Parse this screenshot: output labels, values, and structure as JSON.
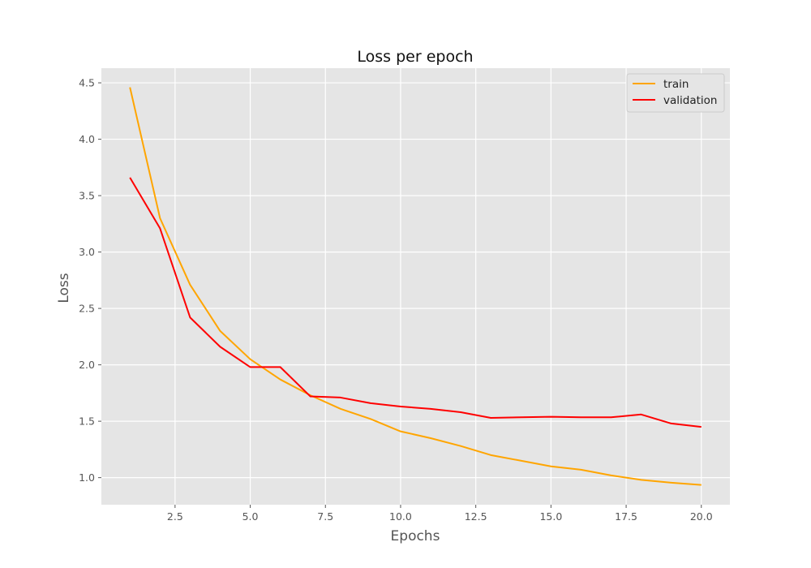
{
  "chart_data": {
    "type": "line",
    "title": "Loss per epoch",
    "xlabel": "Epochs",
    "ylabel": "Loss",
    "xlim": [
      0.05,
      20.95
    ],
    "ylim": [
      0.76,
      4.63
    ],
    "xticks": [
      2.5,
      5.0,
      7.5,
      10.0,
      12.5,
      15.0,
      17.5,
      20.0
    ],
    "xtick_labels": [
      "2.5",
      "5.0",
      "7.5",
      "10.0",
      "12.5",
      "15.0",
      "17.5",
      "20.0"
    ],
    "yticks": [
      1.0,
      1.5,
      2.0,
      2.5,
      3.0,
      3.5,
      4.0,
      4.5
    ],
    "ytick_labels": [
      "1.0",
      "1.5",
      "2.0",
      "2.5",
      "3.0",
      "3.5",
      "4.0",
      "4.5"
    ],
    "grid": true,
    "legend_position": "top-right",
    "background_color": "#e5e5e5",
    "x": [
      1,
      2,
      3,
      4,
      5,
      6,
      7,
      8,
      9,
      10,
      11,
      12,
      13,
      14,
      15,
      16,
      17,
      18,
      19,
      20
    ],
    "series": [
      {
        "name": "train",
        "color": "#ffa500",
        "values": [
          4.46,
          3.3,
          2.71,
          2.3,
          2.05,
          1.87,
          1.73,
          1.61,
          1.52,
          1.41,
          1.35,
          1.28,
          1.2,
          1.15,
          1.1,
          1.07,
          1.02,
          0.98,
          0.955,
          0.935
        ]
      },
      {
        "name": "validation",
        "color": "#ff0000",
        "values": [
          3.66,
          3.21,
          2.42,
          2.16,
          1.98,
          1.98,
          1.72,
          1.71,
          1.66,
          1.63,
          1.61,
          1.58,
          1.53,
          1.535,
          1.54,
          1.535,
          1.535,
          1.56,
          1.48,
          1.45
        ]
      }
    ]
  }
}
